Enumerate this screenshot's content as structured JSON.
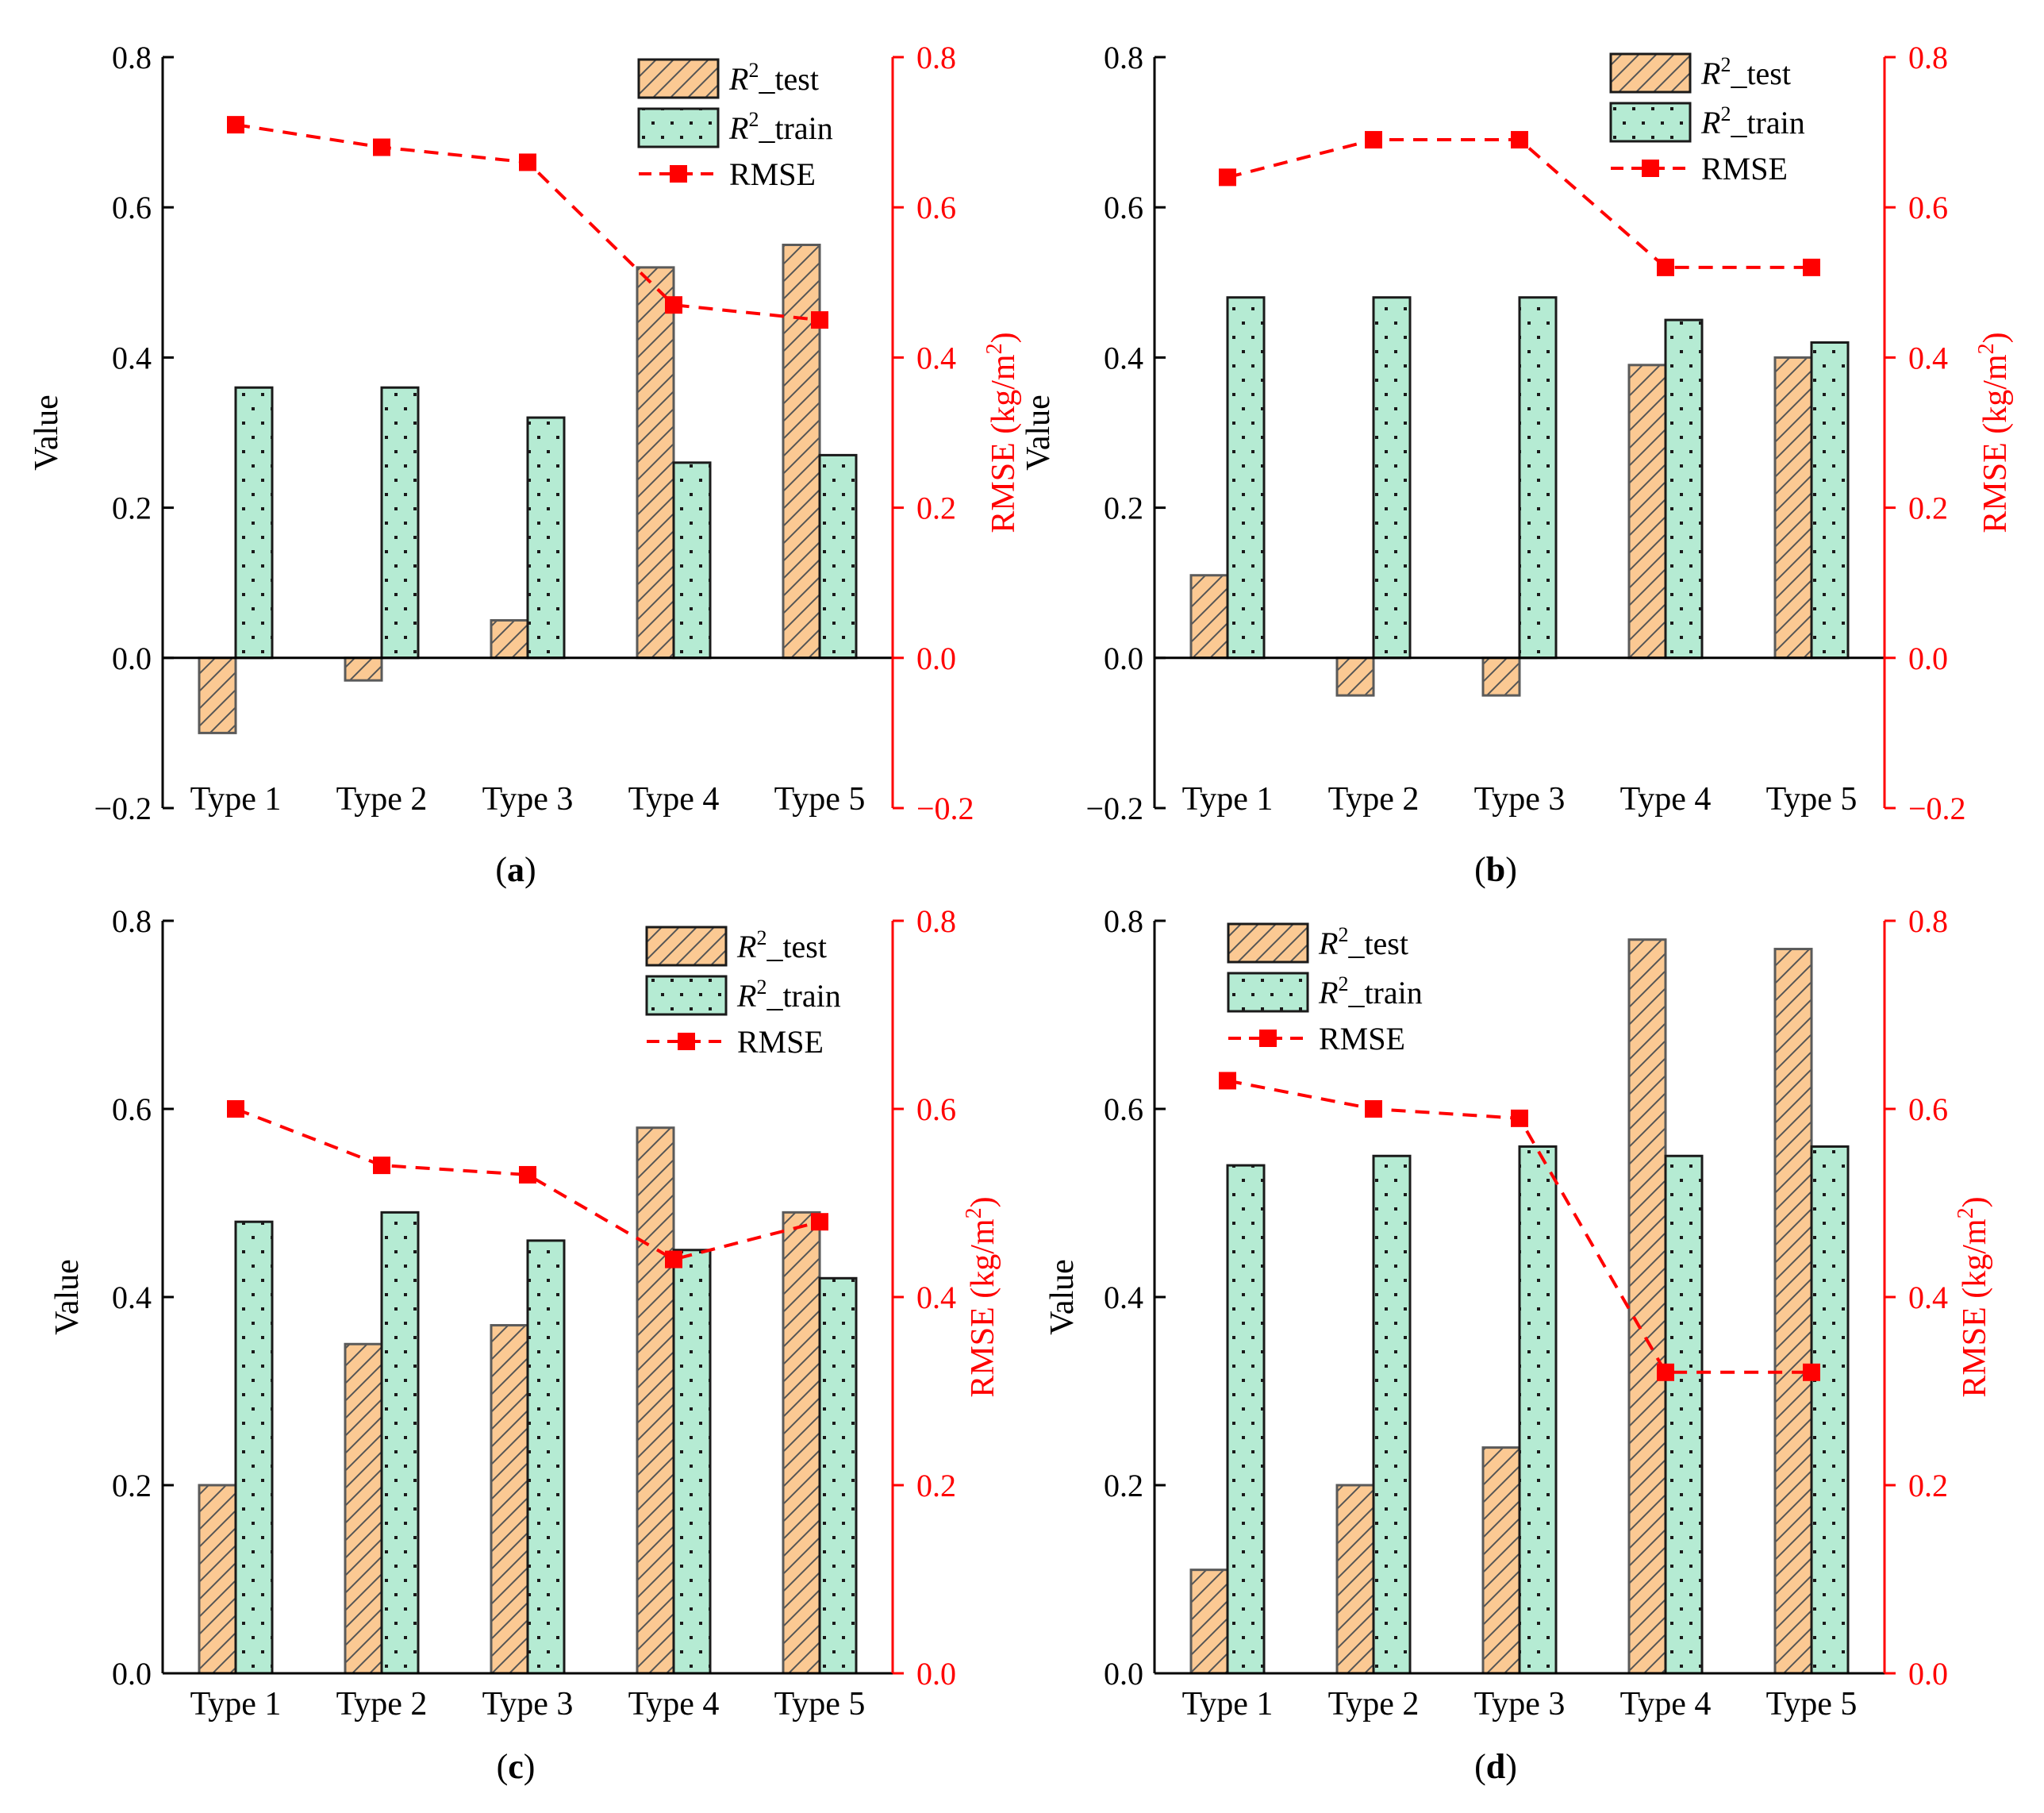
{
  "chart_data": [
    {
      "type": "bar",
      "panel_label": "a",
      "categories": [
        "Type 1",
        "Type 2",
        "Type 3",
        "Type 4",
        "Type 5"
      ],
      "series": [
        {
          "name": "R2_test",
          "legend_main": "R",
          "legend_sup": "2",
          "legend_rest": "_test",
          "values": [
            -0.1,
            -0.03,
            0.05,
            0.52,
            0.55
          ]
        },
        {
          "name": "R2_train",
          "legend_main": "R",
          "legend_sup": "2",
          "legend_rest": "_train",
          "values": [
            0.36,
            0.36,
            0.32,
            0.26,
            0.27
          ]
        }
      ],
      "line": {
        "name": "RMSE",
        "values": [
          0.71,
          0.68,
          0.66,
          0.47,
          0.45
        ]
      },
      "ylabel": "Value",
      "y2label_main": "RMSE (kg/m",
      "y2label_sup": "2",
      "y2label_end": ")",
      "ylim": [
        -0.2,
        0.8
      ],
      "y2lim": [
        -0.2,
        0.8
      ],
      "yticks": [
        "−0.2",
        "0.0",
        "0.2",
        "0.4",
        "0.6",
        "0.8"
      ],
      "y2ticks": [
        "−0.2",
        "0.0",
        "0.2",
        "0.4",
        "0.6",
        "0.8"
      ],
      "legend_position": "top-right"
    },
    {
      "type": "bar",
      "panel_label": "b",
      "categories": [
        "Type 1",
        "Type 2",
        "Type 3",
        "Type 4",
        "Type 5"
      ],
      "series": [
        {
          "name": "R2_test",
          "legend_main": "R",
          "legend_sup": "2",
          "legend_rest": "_test",
          "values": [
            0.11,
            -0.05,
            -0.05,
            0.39,
            0.4
          ]
        },
        {
          "name": "R2_train",
          "legend_main": "R",
          "legend_sup": "2",
          "legend_rest": "_train",
          "values": [
            0.48,
            0.48,
            0.48,
            0.45,
            0.42
          ]
        }
      ],
      "line": {
        "name": "RMSE",
        "values": [
          0.64,
          0.69,
          0.69,
          0.52,
          0.52
        ]
      },
      "ylabel": "Value",
      "y2label_main": "RMSE (kg/m",
      "y2label_sup": "2",
      "y2label_end": ")",
      "ylim": [
        -0.2,
        0.8
      ],
      "y2lim": [
        -0.2,
        0.8
      ],
      "yticks": [
        "−0.2",
        "0.0",
        "0.2",
        "0.4",
        "0.6",
        "0.8"
      ],
      "y2ticks": [
        "−0.2",
        "0.0",
        "0.2",
        "0.4",
        "0.6",
        "0.8"
      ],
      "legend_position": "top-right"
    },
    {
      "type": "bar",
      "panel_label": "c",
      "categories": [
        "Type 1",
        "Type 2",
        "Type 3",
        "Type 4",
        "Type 5"
      ],
      "series": [
        {
          "name": "R2_test",
          "legend_main": "R",
          "legend_sup": "2",
          "legend_rest": "_test",
          "values": [
            0.2,
            0.35,
            0.37,
            0.58,
            0.49
          ]
        },
        {
          "name": "R2_train",
          "legend_main": "R",
          "legend_sup": "2",
          "legend_rest": "_train",
          "values": [
            0.48,
            0.49,
            0.46,
            0.45,
            0.42
          ]
        }
      ],
      "line": {
        "name": "RMSE",
        "values": [
          0.6,
          0.54,
          0.53,
          0.44,
          0.48
        ]
      },
      "ylabel": "Value",
      "y2label_main": "RMSE (kg/m",
      "y2label_sup": "2",
      "y2label_end": ")",
      "ylim": [
        0.0,
        0.8
      ],
      "y2lim": [
        0.0,
        0.8
      ],
      "yticks": [
        "0.0",
        "0.2",
        "0.4",
        "0.6",
        "0.8"
      ],
      "y2ticks": [
        "0.0",
        "0.2",
        "0.4",
        "0.6",
        "0.8"
      ],
      "legend_position": "top-right"
    },
    {
      "type": "bar",
      "panel_label": "d",
      "categories": [
        "Type 1",
        "Type 2",
        "Type 3",
        "Type 4",
        "Type 5"
      ],
      "series": [
        {
          "name": "R2_test",
          "legend_main": "R",
          "legend_sup": "2",
          "legend_rest": "_test",
          "values": [
            0.11,
            0.2,
            0.24,
            0.78,
            0.77
          ]
        },
        {
          "name": "R2_train",
          "legend_main": "R",
          "legend_sup": "2",
          "legend_rest": "_train",
          "values": [
            0.54,
            0.55,
            0.56,
            0.55,
            0.56
          ]
        }
      ],
      "line": {
        "name": "RMSE",
        "values": [
          0.63,
          0.6,
          0.59,
          0.32,
          0.32
        ]
      },
      "ylabel": "Value",
      "y2label_main": "RMSE (kg/m",
      "y2label_sup": "2",
      "y2label_end": ")",
      "ylim": [
        0.0,
        0.8
      ],
      "y2lim": [
        0.0,
        0.8
      ],
      "yticks": [
        "0.0",
        "0.2",
        "0.4",
        "0.6",
        "0.8"
      ],
      "y2ticks": [
        "0.0",
        "0.2",
        "0.4",
        "0.6",
        "0.8"
      ],
      "legend_position": "top-left"
    }
  ],
  "colors": {
    "test_fill": "#fbc993",
    "train_fill": "#b5ebd3",
    "rmse": "#ff0000",
    "axis": "#000000"
  }
}
